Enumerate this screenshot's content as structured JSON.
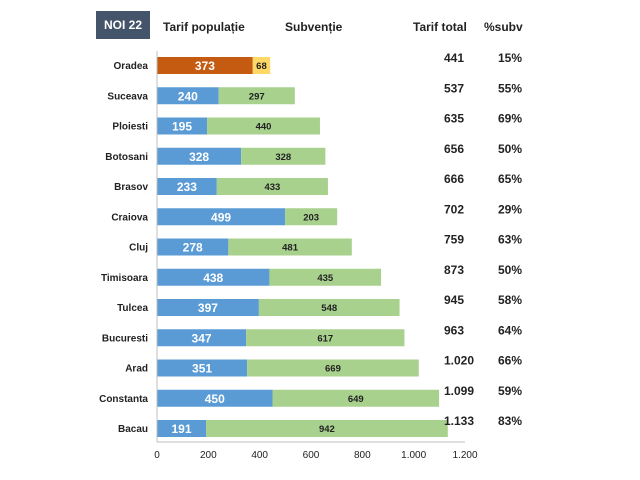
{
  "badge": "NOI 22",
  "headers": {
    "tarif_populatie": "Tarif populație",
    "subventie": "Subvenție",
    "tarif_total": "Tarif total",
    "pct_subv": "%subv"
  },
  "colors": {
    "tarif_populatie": "#5b9bd5",
    "subventie": "#a9d18e",
    "highlight_tarif": "#c55a11",
    "highlight_subventie": "#ffd966",
    "badge_bg": "#44546a"
  },
  "chart_data": {
    "type": "bar",
    "orientation": "horizontal",
    "stacked": true,
    "categories": [
      "Oradea",
      "Suceava",
      "Ploiesti",
      "Botosani",
      "Brasov",
      "Craiova",
      "Cluj",
      "Timisoara",
      "Tulcea",
      "Bucuresti",
      "Arad",
      "Constanta",
      "Bacau"
    ],
    "series": [
      {
        "name": "Tarif populație",
        "values": [
          373,
          240,
          195,
          328,
          233,
          499,
          278,
          438,
          397,
          347,
          351,
          450,
          191
        ]
      },
      {
        "name": "Subvenție",
        "values": [
          68,
          297,
          440,
          328,
          433,
          203,
          481,
          435,
          548,
          617,
          669,
          649,
          942
        ]
      }
    ],
    "labels": {
      "tarif_populatie": [
        "373",
        "240",
        "195",
        "328",
        "233",
        "499",
        "278",
        "438",
        "397",
        "347",
        "351",
        "450",
        "191"
      ],
      "subventie": [
        "68",
        "297",
        "440",
        "328",
        "433",
        "203",
        "481",
        "435",
        "548",
        "617",
        "669",
        "649",
        "942"
      ]
    },
    "tarif_total": [
      "441",
      "537",
      "635",
      "656",
      "666",
      "702",
      "759",
      "873",
      "945",
      "963",
      "1.020",
      "1.099",
      "1.133"
    ],
    "pct_subv": [
      "15%",
      "55%",
      "69%",
      "50%",
      "65%",
      "29%",
      "63%",
      "50%",
      "58%",
      "64%",
      "66%",
      "59%",
      "83%"
    ],
    "highlight_category": "Oradea",
    "xlim": [
      0,
      1200
    ],
    "xticks": [
      "0",
      "200",
      "400",
      "600",
      "800",
      "1.000",
      "1.200"
    ],
    "grid": false
  }
}
